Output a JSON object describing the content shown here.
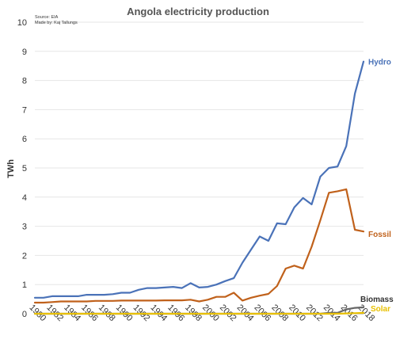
{
  "chart_data": {
    "type": "line",
    "title": "Angola electricity production",
    "source_lines": [
      "Source: EIA",
      "Made by: Kaj Tallungs"
    ],
    "xlabel": "",
    "ylabel": "TWh",
    "xlim": [
      1980,
      2018
    ],
    "ylim": [
      0,
      10
    ],
    "grid": true,
    "x_ticks": [
      1980,
      1982,
      1984,
      1986,
      1988,
      1990,
      1992,
      1994,
      1996,
      1998,
      2000,
      2002,
      2004,
      2006,
      2008,
      2010,
      2012,
      2014,
      2016,
      2018
    ],
    "y_ticks": [
      0,
      1,
      2,
      3,
      4,
      5,
      6,
      7,
      8,
      9,
      10
    ],
    "x": [
      1980,
      1981,
      1982,
      1983,
      1984,
      1985,
      1986,
      1987,
      1988,
      1989,
      1990,
      1991,
      1992,
      1993,
      1994,
      1995,
      1996,
      1997,
      1998,
      1999,
      2000,
      2001,
      2002,
      2003,
      2004,
      2005,
      2006,
      2007,
      2008,
      2009,
      2010,
      2011,
      2012,
      2013,
      2014,
      2015,
      2016,
      2017,
      2018
    ],
    "series": [
      {
        "name": "Hydro",
        "color": "#4a72b8",
        "values": [
          0.55,
          0.55,
          0.6,
          0.6,
          0.6,
          0.6,
          0.65,
          0.65,
          0.65,
          0.67,
          0.72,
          0.72,
          0.82,
          0.88,
          0.88,
          0.9,
          0.92,
          0.88,
          1.05,
          0.9,
          0.92,
          1.0,
          1.12,
          1.22,
          1.75,
          2.2,
          2.65,
          2.5,
          3.1,
          3.07,
          3.65,
          3.97,
          3.75,
          4.7,
          5.0,
          5.05,
          5.75,
          7.55,
          8.65
        ]
      },
      {
        "name": "Fossil",
        "color": "#c0611b",
        "values": [
          0.38,
          0.38,
          0.4,
          0.42,
          0.42,
          0.42,
          0.42,
          0.44,
          0.44,
          0.44,
          0.45,
          0.45,
          0.45,
          0.45,
          0.45,
          0.46,
          0.46,
          0.46,
          0.48,
          0.42,
          0.48,
          0.58,
          0.58,
          0.72,
          0.45,
          0.55,
          0.62,
          0.68,
          0.95,
          1.55,
          1.65,
          1.55,
          2.3,
          3.2,
          4.15,
          4.2,
          4.27,
          2.88,
          2.82
        ]
      },
      {
        "name": "Biomass",
        "color": "#666666",
        "values": [
          0,
          0,
          0,
          0,
          0,
          0,
          0,
          0,
          0,
          0,
          0,
          0,
          0,
          0,
          0,
          0,
          0,
          0,
          0,
          0,
          0,
          0,
          0,
          0,
          0,
          0,
          0,
          0,
          0,
          0,
          0,
          0,
          0,
          0,
          0.03,
          0.03,
          0.15,
          0.2,
          0.22
        ]
      },
      {
        "name": "Solar",
        "color": "#e8c000",
        "values": [
          0,
          0,
          0,
          0,
          0,
          0,
          0,
          0,
          0,
          0,
          0,
          0,
          0,
          0,
          0,
          0,
          0,
          0,
          0,
          0,
          0,
          0,
          0,
          0,
          0,
          0,
          0,
          0,
          0,
          0,
          0,
          0,
          0,
          0,
          0,
          0,
          0.01,
          0.02,
          0.03
        ]
      }
    ]
  }
}
